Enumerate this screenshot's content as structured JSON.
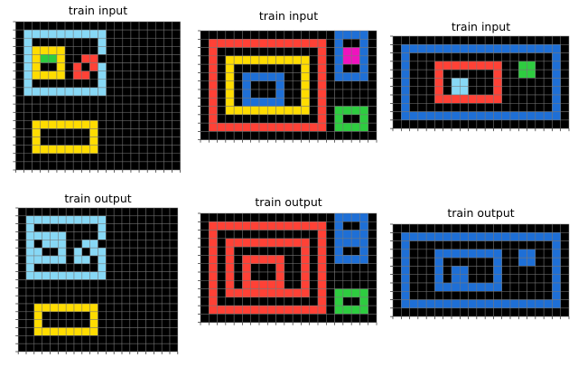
{
  "palette": {
    "0": "#000000",
    "1": "#1e6fd6",
    "2": "#ff4136",
    "3": "#2ecc40",
    "4": "#ffdc00",
    "6": "#f012be",
    "7": "#ff851b",
    "8": "#87d8f5"
  },
  "grid_line_color": "#777777",
  "panels": [
    {
      "title": "train input",
      "grid": [
        "00000000000000000000",
        "08888888888000000000",
        "08000000008000000000",
        "08444400008000000000",
        "08433400220000000000",
        "08400402028000000000",
        "08444402208000000000",
        "08000000008000000000",
        "08888888888000000000",
        "00000000000000000000",
        "00000000000000000000",
        "00000000000000000000",
        "00444444440000000000",
        "00400000040000000000",
        "00400000040000000000",
        "00444444440000000000",
        "00000000000000000000",
        "00000000000000000000"
      ]
    },
    {
      "title": "train input",
      "grid": [
        "000000000000000011110",
        "022222222222222010010",
        "020000000000002016610",
        "020444444444402016610",
        "020400000000402010010",
        "020401111100402011110",
        "020401000100402000000",
        "020401000100402000000",
        "020401111100402000000",
        "020444444444402033330",
        "020000000000002030030",
        "022222222222222033330",
        "000000000000000000000"
      ]
    },
    {
      "title": "train input",
      "grid": [
        "000000000000000000000",
        "011111111111111111110",
        "010000000000000000010",
        "010002222222200330010",
        "010002000000200330010",
        "010002088000200000010",
        "010002088000200000010",
        "010002222222200000010",
        "010000000000000000010",
        "011111111111111111110",
        "000000000000000000000"
      ]
    },
    {
      "title": "train output",
      "grid": [
        "00000000000000000000",
        "08888888888000000000",
        "08000000008000000000",
        "08888800008000000000",
        "08088800880000000000",
        "08800808088000000000",
        "08888808808000000000",
        "08000000008000000000",
        "08888888888000000000",
        "00000000000000000000",
        "00000000000000000000",
        "00000000000000000000",
        "00444444440000000000",
        "00400000040000000000",
        "00400000040000000000",
        "00444444440000000000",
        "00000000000000000000",
        "00000000000000000000"
      ]
    },
    {
      "title": "train output",
      "grid": [
        "000000000000000011110",
        "022222222222222010010",
        "020000000000002011110",
        "020222222222202011110",
        "020200000000202010010",
        "020202222200202011110",
        "020202000200202000000",
        "020202000200202000000",
        "020202222200202000000",
        "020222222222202033330",
        "020000000000002030030",
        "022222222222222033330",
        "000000000000000000000"
      ]
    },
    {
      "title": "train output",
      "grid": [
        "000000000000000000000",
        "011111111111111111110",
        "010000000000000000010",
        "010001111111100110010",
        "010001000000100110010",
        "010001011000100000010",
        "010001011000100000010",
        "010001111111100000010",
        "010000000000000000010",
        "011111111111111111110",
        "000000000000000000000"
      ]
    }
  ]
}
